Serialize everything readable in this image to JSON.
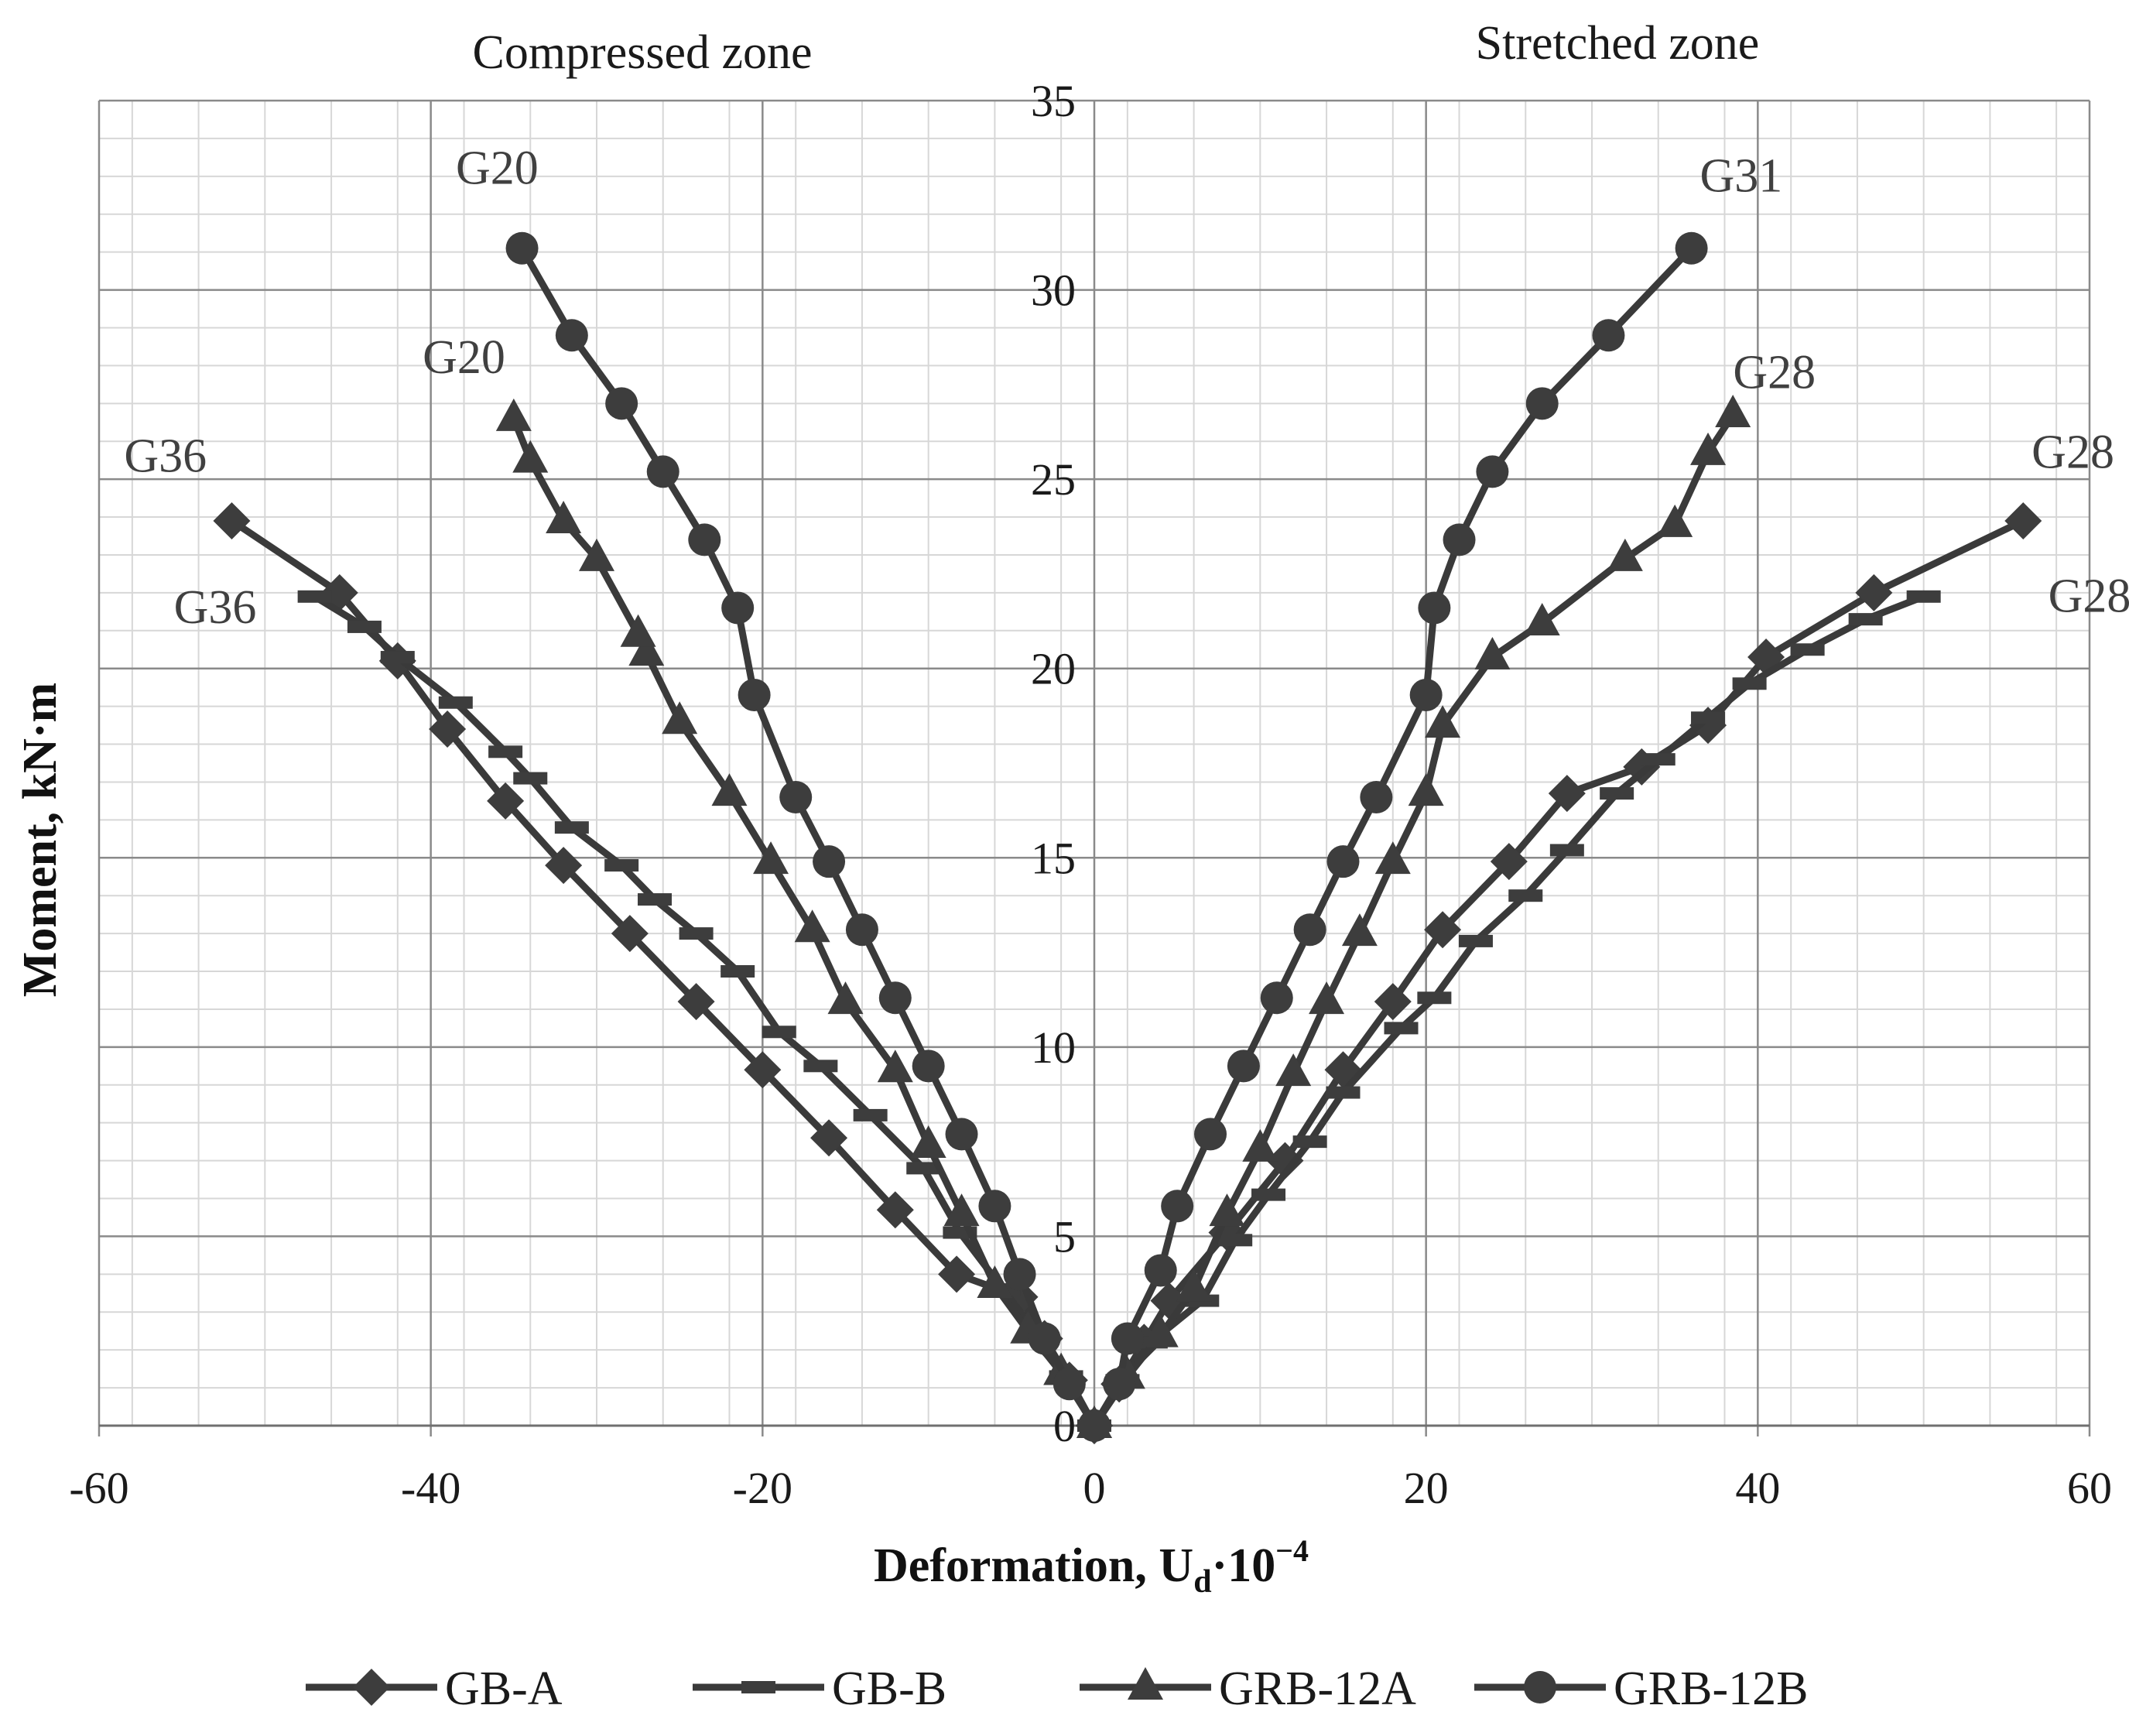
{
  "chart_data": {
    "type": "line",
    "title": "",
    "xlabel": "Deformation, U",
    "xlabel_sub": "d",
    "xlabel_tail": "·10",
    "xlabel_sup": "−4",
    "ylabel": "Moment, kN·m",
    "xlim": [
      -60,
      60
    ],
    "ylim": [
      0,
      35
    ],
    "grid": true,
    "x_ticks": [
      "-60",
      "-40",
      "-20",
      "0",
      "20",
      "40",
      "60"
    ],
    "y_ticks": [
      "0",
      "5",
      "10",
      "15",
      "20",
      "25",
      "30",
      "35"
    ],
    "zone_labels": {
      "left": "Compressed zone",
      "right": "Stretched zone"
    },
    "legend_position": "bottom",
    "series": [
      {
        "name": "GB-A",
        "marker": "diamond",
        "compressed": [
          [
            0,
            0
          ],
          [
            -1.5,
            1.2
          ],
          [
            -3,
            2.3
          ],
          [
            -4.5,
            3.4
          ],
          [
            -8.3,
            4.0
          ],
          [
            -12,
            5.7
          ],
          [
            -16,
            7.6
          ],
          [
            -20,
            9.4
          ],
          [
            -24,
            11.2
          ],
          [
            -28,
            13.0
          ],
          [
            -32,
            14.8
          ],
          [
            -35.5,
            16.5
          ],
          [
            -39,
            18.4
          ],
          [
            -42,
            20.2
          ],
          [
            -45.5,
            22.0
          ],
          [
            -52,
            23.9
          ]
        ],
        "stretched": [
          [
            0,
            0
          ],
          [
            1.5,
            1.1
          ],
          [
            3,
            2.2
          ],
          [
            4.5,
            3.3
          ],
          [
            8,
            5.1
          ],
          [
            11.5,
            7.0
          ],
          [
            15,
            9.4
          ],
          [
            18,
            11.2
          ],
          [
            21,
            13.1
          ],
          [
            25,
            14.9
          ],
          [
            28.5,
            16.7
          ],
          [
            33,
            17.4
          ],
          [
            37,
            18.5
          ],
          [
            40.5,
            20.3
          ],
          [
            47,
            22.0
          ],
          [
            56,
            23.9
          ]
        ]
      },
      {
        "name": "GB-B",
        "marker": "dash",
        "compressed": [
          [
            0,
            0
          ],
          [
            -1.7,
            1.3
          ],
          [
            -3.4,
            2.4
          ],
          [
            -5.5,
            3.6
          ],
          [
            -8.1,
            5.1
          ],
          [
            -10.3,
            6.8
          ],
          [
            -13.5,
            8.2
          ],
          [
            -16.5,
            9.5
          ],
          [
            -19,
            10.4
          ],
          [
            -21.5,
            12.0
          ],
          [
            -24,
            13.0
          ],
          [
            -26.5,
            13.9
          ],
          [
            -28.5,
            14.8
          ],
          [
            -31.5,
            15.8
          ],
          [
            -34,
            17.1
          ],
          [
            -35.5,
            17.8
          ],
          [
            -38.5,
            19.1
          ],
          [
            -42,
            20.3
          ],
          [
            -44,
            21.1
          ],
          [
            -47,
            21.9
          ]
        ],
        "stretched": [
          [
            0,
            0
          ],
          [
            1.7,
            1.2
          ],
          [
            3.4,
            2.2
          ],
          [
            6.5,
            3.3
          ],
          [
            8.5,
            4.9
          ],
          [
            10.5,
            6.1
          ],
          [
            13,
            7.5
          ],
          [
            15,
            8.8
          ],
          [
            18.5,
            10.5
          ],
          [
            20.5,
            11.3
          ],
          [
            23,
            12.8
          ],
          [
            26,
            14.0
          ],
          [
            28.5,
            15.2
          ],
          [
            31.5,
            16.7
          ],
          [
            34,
            17.6
          ],
          [
            37,
            18.7
          ],
          [
            39.5,
            19.6
          ],
          [
            43,
            20.5
          ],
          [
            46.5,
            21.3
          ],
          [
            50,
            21.9
          ]
        ]
      },
      {
        "name": "GRB-12A",
        "marker": "triangle",
        "compressed": [
          [
            0,
            0
          ],
          [
            -2,
            1.4
          ],
          [
            -4,
            2.5
          ],
          [
            -6,
            3.7
          ],
          [
            -8,
            5.6
          ],
          [
            -10,
            7.4
          ],
          [
            -12,
            9.4
          ],
          [
            -15,
            11.2
          ],
          [
            -17,
            13.1
          ],
          [
            -19.5,
            14.9
          ],
          [
            -22,
            16.7
          ],
          [
            -25,
            18.6
          ],
          [
            -27,
            20.4
          ],
          [
            -27.5,
            20.9
          ],
          [
            -30,
            22.9
          ],
          [
            -32,
            23.9
          ],
          [
            -34,
            25.5
          ],
          [
            -35,
            26.6
          ]
        ],
        "stretched": [
          [
            0,
            0
          ],
          [
            2,
            1.3
          ],
          [
            4,
            2.4
          ],
          [
            6,
            3.6
          ],
          [
            8,
            5.6
          ],
          [
            10,
            7.3
          ],
          [
            12,
            9.3
          ],
          [
            14,
            11.2
          ],
          [
            16,
            13.0
          ],
          [
            18,
            14.9
          ],
          [
            20,
            16.7
          ],
          [
            21,
            18.5
          ],
          [
            24,
            20.3
          ],
          [
            27,
            21.2
          ],
          [
            32,
            22.9
          ],
          [
            35,
            23.8
          ],
          [
            37,
            25.7
          ],
          [
            38.5,
            26.7
          ]
        ]
      },
      {
        "name": "GRB-12B",
        "marker": "circle",
        "compressed": [
          [
            0,
            0
          ],
          [
            -1.5,
            1.1
          ],
          [
            -3,
            2.3
          ],
          [
            -4.5,
            4.0
          ],
          [
            -6,
            5.8
          ],
          [
            -8,
            7.7
          ],
          [
            -10,
            9.5
          ],
          [
            -12,
            11.3
          ],
          [
            -14,
            13.1
          ],
          [
            -16,
            14.9
          ],
          [
            -18,
            16.6
          ],
          [
            -20.5,
            19.3
          ],
          [
            -21.5,
            21.6
          ],
          [
            -23.5,
            23.4
          ],
          [
            -26,
            25.2
          ],
          [
            -28.5,
            27.0
          ],
          [
            -31.5,
            28.8
          ],
          [
            -34.5,
            31.1
          ]
        ],
        "stretched": [
          [
            0,
            0
          ],
          [
            1.5,
            1.1
          ],
          [
            2,
            2.3
          ],
          [
            4,
            4.1
          ],
          [
            5,
            5.8
          ],
          [
            7,
            7.7
          ],
          [
            9,
            9.5
          ],
          [
            11,
            11.3
          ],
          [
            13,
            13.1
          ],
          [
            15,
            14.9
          ],
          [
            17,
            16.6
          ],
          [
            20,
            19.3
          ],
          [
            20.5,
            21.6
          ],
          [
            22,
            23.4
          ],
          [
            24,
            25.2
          ],
          [
            27,
            27.0
          ],
          [
            31,
            28.8
          ],
          [
            36,
            31.1
          ]
        ]
      }
    ],
    "annotations": [
      {
        "text": "G20",
        "x": -36,
        "y": 32.8,
        "align": "center"
      },
      {
        "text": "G20",
        "x": -38,
        "y": 27.8,
        "align": "center"
      },
      {
        "text": "G36",
        "x": -56,
        "y": 25.2,
        "align": "center"
      },
      {
        "text": "G36",
        "x": -53,
        "y": 21.2,
        "align": "center"
      },
      {
        "text": "G31",
        "x": 39,
        "y": 32.6,
        "align": "center"
      },
      {
        "text": "G28",
        "x": 41,
        "y": 27.4,
        "align": "center"
      },
      {
        "text": "G28",
        "x": 59,
        "y": 25.3,
        "align": "center"
      },
      {
        "text": "G28",
        "x": 60,
        "y": 21.5,
        "align": "center"
      }
    ]
  }
}
